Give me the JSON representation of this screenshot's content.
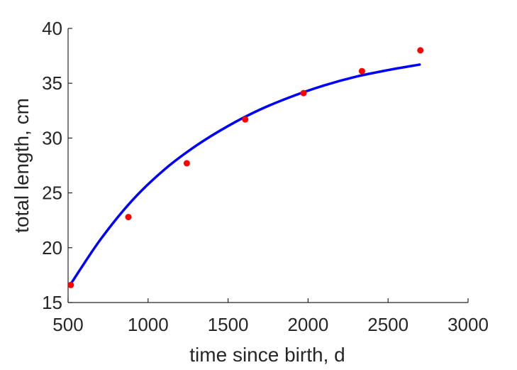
{
  "chart_data": {
    "type": "scatter",
    "title": "",
    "xlabel": "time since birth, d",
    "ylabel": "total length, cm",
    "xlim": [
      500,
      3000
    ],
    "ylim": [
      15,
      40
    ],
    "xticks": [
      500,
      1000,
      1500,
      2000,
      2500,
      3000
    ],
    "yticks": [
      15,
      20,
      25,
      30,
      35,
      40
    ],
    "grid": false,
    "legend": "none",
    "series": [
      {
        "kind": "points",
        "color": "#ff0000",
        "x": [
          517,
          877,
          1242,
          1607,
          1972,
          2337,
          2702
        ],
        "y": [
          16.6,
          22.8,
          27.7,
          31.7,
          34.1,
          36.1,
          38.0
        ]
      },
      {
        "kind": "fit-line",
        "color": "#0000ff",
        "x": [
          517,
          700,
          900,
          1100,
          1300,
          1500,
          1700,
          1900,
          2100,
          2300,
          2500,
          2697
        ],
        "y": [
          16.7,
          20.7,
          24.3,
          27.1,
          29.3,
          31.1,
          32.6,
          33.8,
          34.8,
          35.6,
          36.2,
          36.7
        ]
      }
    ]
  }
}
